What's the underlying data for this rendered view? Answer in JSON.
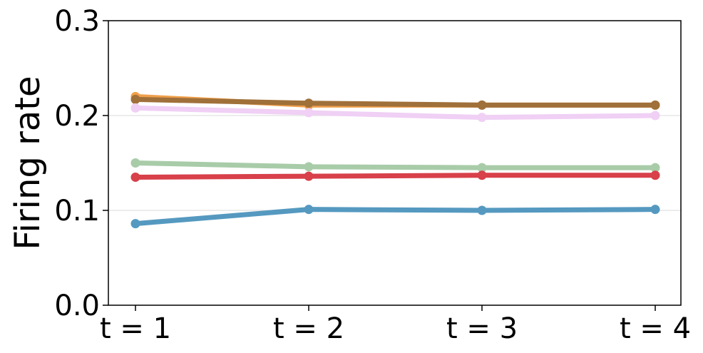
{
  "chart_data": {
    "type": "line",
    "title": "",
    "xlabel": "",
    "ylabel": "Firing rate",
    "categories": [
      "t = 1",
      "t = 2",
      "t = 3",
      "t = 4"
    ],
    "ylim": [
      0.0,
      0.3
    ],
    "yticks": [
      "0.0",
      "0.1",
      "0.2",
      "0.3"
    ],
    "grid": "horizontal",
    "legend": "none",
    "series": [
      {
        "color": "#F0A04B",
        "values": [
          0.22,
          0.211,
          0.211,
          0.211
        ]
      },
      {
        "color": "#A0703A",
        "values": [
          0.217,
          0.213,
          0.211,
          0.211
        ]
      },
      {
        "color": "#F0D0F5",
        "values": [
          0.208,
          0.203,
          0.198,
          0.2
        ]
      },
      {
        "color": "#A8CCA8",
        "values": [
          0.15,
          0.146,
          0.145,
          0.145
        ]
      },
      {
        "color": "#D8404A",
        "values": [
          0.135,
          0.136,
          0.137,
          0.137
        ]
      },
      {
        "color": "#5599C0",
        "values": [
          0.086,
          0.101,
          0.1,
          0.101
        ]
      }
    ]
  }
}
